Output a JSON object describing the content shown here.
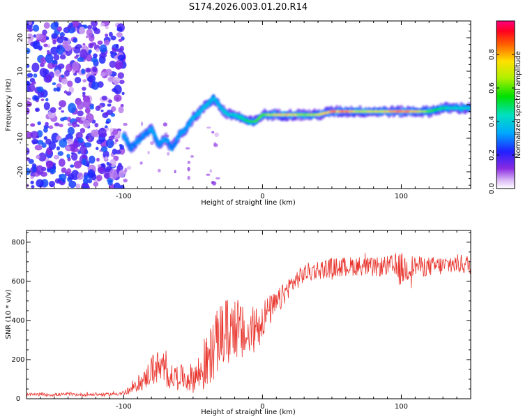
{
  "chart_data": [
    {
      "id": "spectrogram",
      "type": "heatmap",
      "title": "S174.2026.003.01.20.R14",
      "xlabel": "Height of straight line (km)",
      "ylabel": "Frequency (Hz)",
      "xlim": [
        -170,
        150
      ],
      "ylim": [
        -25,
        25
      ],
      "xticks": [
        -100,
        0,
        100
      ],
      "yticks": [
        -20,
        -10,
        0,
        10,
        20
      ],
      "colorbar": {
        "label": "Normalized spectral amplitude",
        "range": [
          0,
          1
        ],
        "ticks": [
          0,
          0.2,
          0.4,
          0.6,
          0.8
        ],
        "tick_labels": [
          "0.0",
          "0.2",
          "0.4",
          "0.6",
          "0.8"
        ]
      },
      "ridge": {
        "x": [
          -100,
          -95,
          -90,
          -85,
          -80,
          -75,
          -70,
          -65,
          -60,
          -55,
          -50,
          -45,
          -40,
          -35,
          -30,
          -25,
          -20,
          -15,
          -10,
          -5,
          0,
          10,
          20,
          30,
          40,
          50,
          60,
          70,
          80,
          90,
          100,
          110,
          120,
          130,
          140,
          150
        ],
        "y": [
          -9,
          -13,
          -11,
          -9,
          -7,
          -12,
          -10,
          -13,
          -9,
          -7,
          -4,
          -2,
          0,
          2,
          -1,
          -3,
          -3,
          -4,
          -5,
          -5,
          -3,
          -3,
          -3,
          -3,
          -3,
          -2,
          -2,
          -2,
          -2,
          -2,
          -2,
          -2,
          -2,
          -1,
          -1,
          -1
        ],
        "amplitude": [
          0.35,
          0.3,
          0.32,
          0.3,
          0.35,
          0.33,
          0.35,
          0.3,
          0.33,
          0.35,
          0.38,
          0.4,
          0.4,
          0.38,
          0.4,
          0.42,
          0.45,
          0.48,
          0.55,
          0.62,
          0.6,
          0.75,
          0.78,
          0.65,
          0.72,
          0.85,
          0.88,
          0.7,
          0.72,
          0.78,
          0.88,
          0.82,
          0.6,
          0.5,
          0.45,
          0.42
        ]
      },
      "noise_region_x": [
        -170,
        -100
      ]
    },
    {
      "id": "snr",
      "type": "line",
      "title": "",
      "xlabel": "Height of straight line (km)",
      "ylabel": "SNR (10 * v/v)",
      "xlim": [
        -170,
        150
      ],
      "ylim": [
        0,
        860
      ],
      "xticks": [
        -100,
        0,
        100
      ],
      "yticks": [
        0,
        200,
        400,
        600,
        800
      ],
      "series": [
        {
          "name": "SNR",
          "color": "#e8342c",
          "x": [
            -170,
            -160,
            -150,
            -140,
            -130,
            -120,
            -110,
            -100,
            -95,
            -90,
            -85,
            -80,
            -75,
            -70,
            -65,
            -60,
            -55,
            -50,
            -45,
            -40,
            -35,
            -30,
            -25,
            -20,
            -15,
            -10,
            -5,
            0,
            5,
            10,
            15,
            20,
            25,
            30,
            40,
            50,
            60,
            70,
            80,
            90,
            100,
            110,
            120,
            130,
            140,
            150
          ],
          "values": [
            20,
            22,
            20,
            23,
            21,
            22,
            22,
            30,
            45,
            70,
            95,
            150,
            160,
            130,
            110,
            120,
            100,
            110,
            130,
            180,
            260,
            320,
            340,
            380,
            330,
            310,
            370,
            410,
            450,
            480,
            530,
            580,
            610,
            640,
            660,
            670,
            675,
            680,
            670,
            680,
            660,
            680,
            675,
            680,
            690,
            685
          ],
          "spread": [
            8,
            8,
            8,
            8,
            8,
            8,
            8,
            12,
            20,
            30,
            50,
            80,
            90,
            80,
            60,
            60,
            60,
            80,
            110,
            140,
            160,
            170,
            180,
            170,
            150,
            130,
            120,
            100,
            80,
            70,
            60,
            50,
            50,
            50,
            50,
            50,
            50,
            50,
            50,
            50,
            90,
            50,
            50,
            50,
            50,
            50
          ]
        }
      ]
    }
  ]
}
